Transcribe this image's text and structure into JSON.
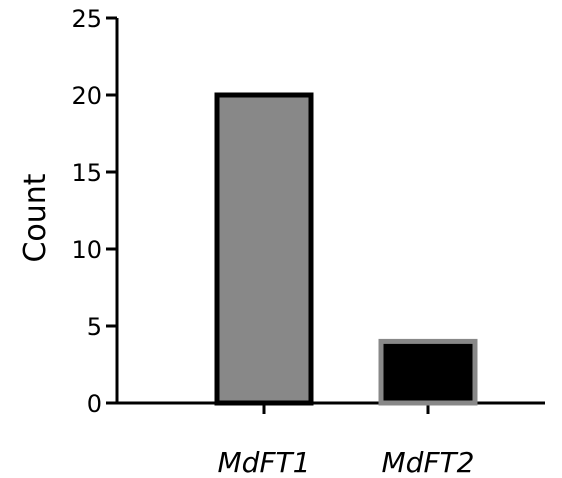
{
  "chart_data": {
    "type": "bar",
    "title": "",
    "xlabel": "",
    "ylabel": "Count",
    "categories": [
      "MdFT1",
      "MdFT2"
    ],
    "values": [
      20,
      4
    ],
    "ylim": [
      0,
      25
    ],
    "yticks": [
      0,
      5,
      10,
      15,
      20,
      25
    ],
    "grid": false,
    "legend": "none",
    "colors": {
      "bar_fills": [
        "#888888",
        "#000000"
      ],
      "bar_outlines": [
        "#000000",
        "#888888"
      ],
      "axis": "#000000"
    }
  }
}
